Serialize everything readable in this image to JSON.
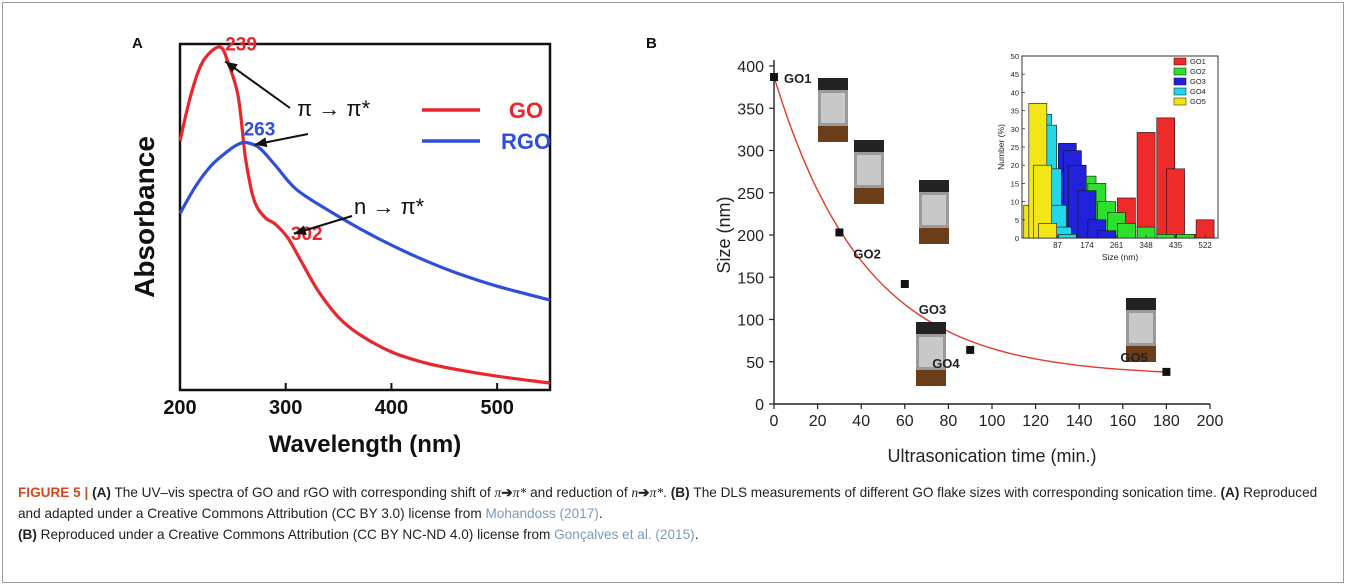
{
  "figure_label": "FIGURE 5 |",
  "caption": {
    "p_a": "(A)",
    "t1": " The UV–vis spectra of GO and rGO with corresponding shift of ",
    "pi1": "π",
    "arrow": "➔",
    "pistar1": "π*",
    "t2": " and reduction of ",
    "n": "n",
    "pistar2": "π*",
    "dot": ". ",
    "p_b": "(B)",
    "t3": " The DLS measurements of different GO flake sizes with corresponding sonication time. ",
    "p_a2": "(A)",
    "t4": " Reproduced and adapted under a Creative Commons Attribution (CC BY 3.0) license from ",
    "ref1": "Mohandoss (2017)",
    "t5": ".",
    "p_b2": "(B)",
    "t6": " Reproduced under a Creative Commons Attribution (CC BY NC-ND 4.0) license from ",
    "ref2": "Gonçalves et al. (2015)",
    "t7": "."
  },
  "chart_data": [
    {
      "panel": "A",
      "type": "line",
      "xlabel": "Wavelength (nm)",
      "ylabel": "Absorbance",
      "xlim": [
        200,
        550
      ],
      "ylim": [
        0,
        1
      ],
      "xticks": [
        200,
        300,
        400,
        500
      ],
      "series": [
        {
          "name": "GO",
          "color": "#e8262b",
          "x": [
            200,
            210,
            220,
            230,
            239,
            245,
            255,
            262,
            270,
            280,
            290,
            302,
            315,
            330,
            350,
            370,
            400,
            430,
            460,
            500,
            550
          ],
          "y": [
            0.72,
            0.85,
            0.94,
            0.98,
            0.99,
            0.95,
            0.85,
            0.67,
            0.55,
            0.5,
            0.48,
            0.44,
            0.37,
            0.29,
            0.21,
            0.16,
            0.11,
            0.08,
            0.06,
            0.04,
            0.02
          ]
        },
        {
          "name": "RGO",
          "color": "#2e4fd8",
          "x": [
            200,
            215,
            230,
            245,
            255,
            263,
            275,
            290,
            310,
            340,
            380,
            420,
            460,
            500,
            550
          ],
          "y": [
            0.51,
            0.59,
            0.65,
            0.69,
            0.71,
            0.715,
            0.7,
            0.65,
            0.58,
            0.52,
            0.45,
            0.39,
            0.34,
            0.3,
            0.26
          ]
        }
      ],
      "annotations": [
        {
          "text": "239",
          "color": "#e8262b"
        },
        {
          "text": "263",
          "color": "#2e4fd8"
        },
        {
          "text": "302",
          "color": "#e8262b"
        },
        {
          "text": "π → π*",
          "color": "#111111"
        },
        {
          "text": "n → π*",
          "color": "#111111"
        }
      ],
      "legend": "top-right"
    },
    {
      "panel": "B",
      "type": "scatter",
      "xlabel": "Ultrasonication time (min.)",
      "ylabel": "Size (nm)",
      "xlim": [
        0,
        200
      ],
      "ylim": [
        0,
        400
      ],
      "xticks": [
        0,
        20,
        40,
        60,
        80,
        100,
        120,
        140,
        160,
        180,
        200
      ],
      "yticks": [
        0,
        50,
        100,
        150,
        200,
        250,
        300,
        350,
        400
      ],
      "series": [
        {
          "name": "",
          "x": [
            0,
            30,
            60,
            90,
            180
          ],
          "y": [
            387,
            203,
            142,
            64,
            38
          ],
          "labels": [
            "GO1",
            "GO2",
            "GO3",
            "GO4",
            "GO5"
          ]
        }
      ],
      "fit_curve": {
        "color": "#e03a2e"
      },
      "inset": {
        "type": "bar",
        "xlabel": "Size (nm)",
        "ylabel": "Number (%)",
        "ylim": [
          0,
          50
        ],
        "yticks": [
          0,
          5,
          10,
          15,
          20,
          25,
          30,
          35,
          40,
          45,
          50
        ],
        "xticks": [
          87,
          174,
          261,
          348,
          435,
          522
        ],
        "series": [
          {
            "name": "GO1",
            "color": "#ee2a2a",
            "x": [
              261,
              290,
              348,
              406,
              435,
              493,
              522
            ],
            "y": [
              2,
              11,
              29,
              33,
              19,
              1,
              5
            ]
          },
          {
            "name": "GO2",
            "color": "#2ee02e",
            "x": [
              87,
              116,
              145,
              174,
              203,
              232,
              261,
              290,
              348,
              406,
              464
            ],
            "y": [
              2,
              8,
              15,
              17,
              15,
              10,
              7,
              4,
              3,
              1,
              1
            ]
          },
          {
            "name": "GO3",
            "color": "#2222dd",
            "x": [
              58,
              87,
              116,
              131,
              145,
              174,
              203,
              232
            ],
            "y": [
              3,
              10,
              26,
              24,
              20,
              13,
              5,
              2
            ]
          },
          {
            "name": "GO4",
            "color": "#22d8e8",
            "x": [
              29,
              43,
              58,
              72,
              87,
              101,
              116
            ],
            "y": [
              25,
              34,
              31,
              19,
              9,
              3,
              1
            ]
          },
          {
            "name": "GO5",
            "color": "#f2e619",
            "x": [
              14,
              29,
              43,
              58
            ],
            "y": [
              9,
              37,
              20,
              4
            ]
          }
        ]
      }
    }
  ]
}
